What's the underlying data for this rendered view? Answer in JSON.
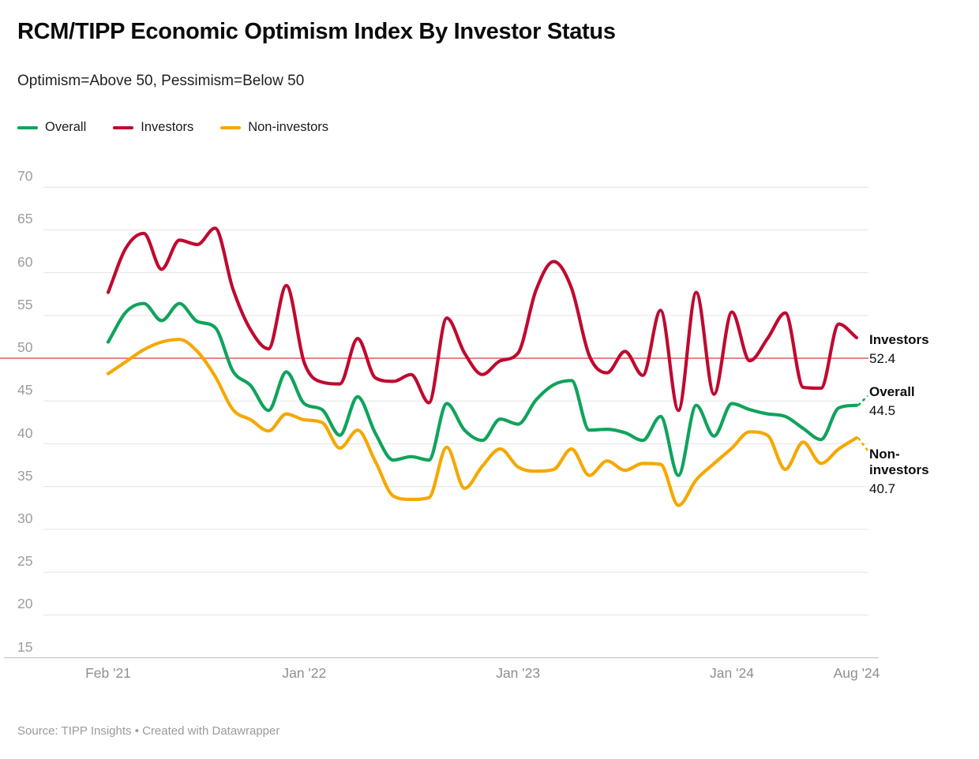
{
  "header": {
    "title": "RCM/TIPP Economic Optimism Index By Investor Status",
    "subtitle": "Optimism=Above 50, Pessimism=Below 50"
  },
  "legend": [
    {
      "label": "Overall",
      "color": "#10a35c"
    },
    {
      "label": "Investors",
      "color": "#bf0a30"
    },
    {
      "label": "Non-investors",
      "color": "#f5a800"
    }
  ],
  "chart_data": {
    "type": "line",
    "title": "RCM/TIPP Economic Optimism Index By Investor Status",
    "subtitle": "Optimism=Above 50, Pessimism=Below 50",
    "x": [
      "Feb '21",
      "Mar '21",
      "Apr '21",
      "May '21",
      "Jun '21",
      "Jul '21",
      "Aug '21",
      "Sep '21",
      "Oct '21",
      "Nov '21",
      "Dec '21",
      "Jan '22",
      "Feb '22",
      "Mar '22",
      "Apr '22",
      "May '22",
      "Jun '22",
      "Jul '22",
      "Aug '22",
      "Sep '22",
      "Oct '22",
      "Nov '22",
      "Dec '22",
      "Jan '23",
      "Feb '23",
      "Mar '23",
      "Apr '23",
      "May '23",
      "Jun '23",
      "Jul '23",
      "Aug '23",
      "Sep '23",
      "Oct '23",
      "Nov '23",
      "Dec '23",
      "Jan '24",
      "Feb '24",
      "Mar '24",
      "Apr '24",
      "May '24",
      "Jun '24",
      "Jul '24",
      "Aug '24"
    ],
    "series": [
      {
        "name": "Overall",
        "color": "#10a35c",
        "values": [
          51.9,
          55.4,
          56.4,
          54.4,
          56.4,
          54.3,
          53.6,
          48.5,
          46.8,
          43.9,
          48.4,
          44.7,
          44.0,
          41.0,
          45.5,
          41.2,
          38.1,
          38.5,
          38.1,
          44.7,
          41.6,
          40.4,
          42.9,
          42.3,
          45.1,
          46.9,
          47.4,
          41.6,
          41.7,
          41.3,
          40.4,
          43.2,
          36.3,
          44.5,
          40.9,
          44.7,
          44.0,
          43.5,
          43.2,
          41.8,
          40.5,
          44.2,
          44.5
        ]
      },
      {
        "name": "Investors",
        "color": "#bf0a30",
        "values": [
          57.7,
          62.9,
          64.6,
          60.4,
          63.8,
          63.3,
          65.2,
          58.1,
          53.3,
          51.1,
          58.5,
          49.5,
          47.2,
          47.0,
          52.3,
          47.7,
          47.3,
          48.1,
          44.8,
          54.7,
          50.6,
          48.1,
          49.7,
          50.6,
          57.9,
          61.3,
          58.2,
          50.3,
          48.3,
          50.8,
          48.0,
          55.6,
          43.9,
          57.7,
          45.8,
          55.4,
          49.7,
          52.3,
          55.3,
          46.6,
          46.5,
          54.0,
          52.4
        ]
      },
      {
        "name": "Non-investors",
        "color": "#f5a800",
        "values": [
          48.2,
          49.6,
          51.0,
          51.9,
          52.2,
          50.8,
          47.9,
          44.0,
          42.8,
          41.5,
          43.5,
          42.8,
          42.5,
          39.5,
          41.6,
          37.9,
          33.9,
          33.5,
          33.7,
          39.6,
          34.8,
          37.4,
          39.4,
          37.3,
          36.8,
          37.0,
          39.4,
          36.3,
          38.0,
          36.9,
          37.7,
          37.6,
          32.8,
          35.8,
          37.7,
          39.5,
          41.4,
          41.0,
          37.0,
          40.2,
          37.7,
          39.4,
          40.7
        ]
      }
    ],
    "ylim": [
      15,
      70
    ],
    "yticks": [
      15,
      20,
      25,
      30,
      35,
      40,
      45,
      50,
      55,
      60,
      65,
      70
    ],
    "xticks": [
      {
        "label": "Feb '21",
        "index": 0
      },
      {
        "label": "Jan '22",
        "index": 11
      },
      {
        "label": "Jan '23",
        "index": 23
      },
      {
        "label": "Jan '24",
        "index": 35
      },
      {
        "label": "Aug '24",
        "index": 42
      }
    ],
    "reference_line": {
      "value": 50,
      "color": "#e16a6a"
    },
    "grid": "horizontal",
    "legend_position": "top",
    "end_labels": [
      {
        "series": "Investors",
        "name": "Investors",
        "value": "52.4"
      },
      {
        "series": "Overall",
        "name": "Overall",
        "value": "44.5"
      },
      {
        "series": "Non-investors",
        "name": "Non-investors",
        "value": "40.7"
      }
    ]
  },
  "footer": {
    "source": "Source: TIPP Insights • Created with Datawrapper"
  }
}
